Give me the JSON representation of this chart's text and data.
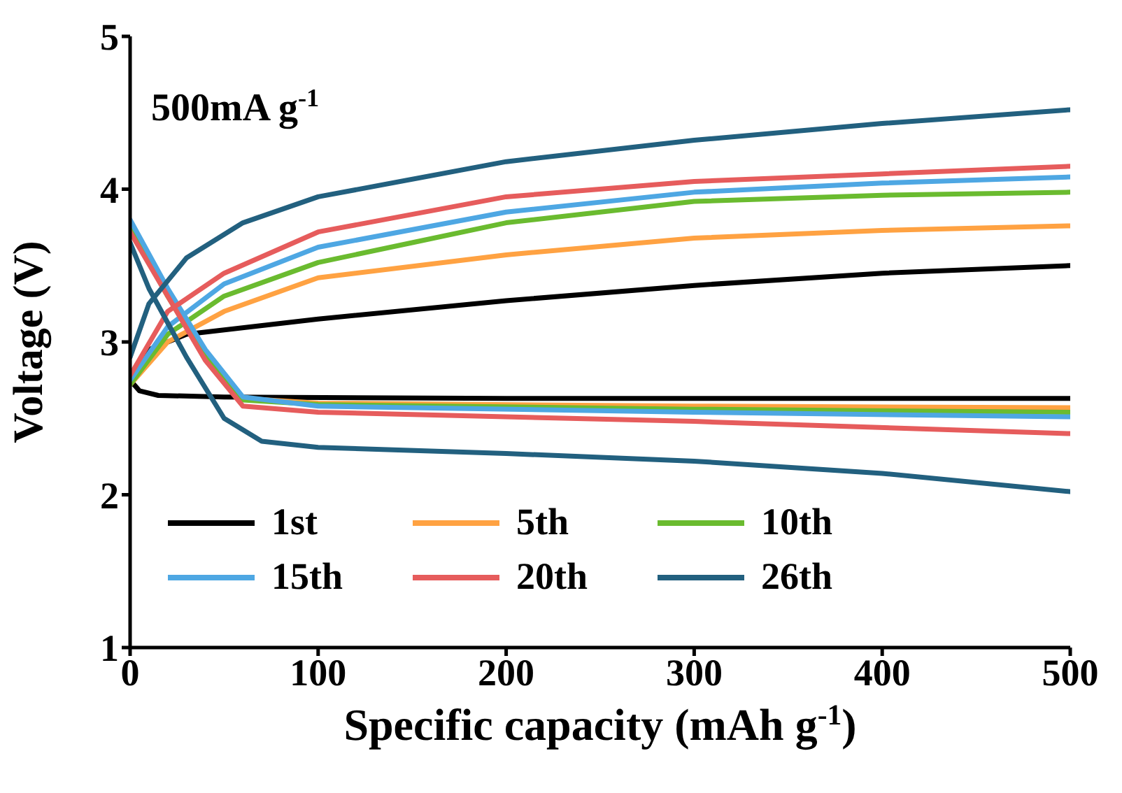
{
  "chart_data": {
    "type": "line",
    "xlabel": "Specific capacity (mAh g$^{-1}$)",
    "ylabel": "Voltage (V)",
    "annotations": [
      "500mA g$^{-1}$"
    ],
    "xlim": [
      0,
      500
    ],
    "xticks": [
      0,
      100,
      200,
      300,
      400,
      500
    ],
    "ylim": [
      1,
      5
    ],
    "yticks": [
      1,
      2,
      3,
      4,
      5
    ],
    "legend": "bottom",
    "series": [
      {
        "name": "1st",
        "color": "#000000",
        "x": [
          0,
          10,
          30,
          100,
          200,
          300,
          400,
          500
        ],
        "values": [
          2.75,
          2.95,
          3.05,
          3.15,
          3.27,
          3.37,
          3.45,
          3.5
        ]
      },
      {
        "color": "#000000",
        "x": [
          0,
          5,
          15,
          50,
          200,
          500
        ],
        "values": [
          2.75,
          2.68,
          2.65,
          2.64,
          2.63,
          2.63
        ]
      },
      {
        "name": "5th",
        "color": "#ffa242",
        "x": [
          0,
          20,
          50,
          100,
          200,
          300,
          400,
          500
        ],
        "values": [
          2.72,
          3.0,
          3.2,
          3.42,
          3.57,
          3.68,
          3.73,
          3.76
        ]
      },
      {
        "color": "#ffa242",
        "x": [
          0,
          20,
          40,
          60,
          100,
          300,
          500
        ],
        "values": [
          3.75,
          3.3,
          2.9,
          2.63,
          2.6,
          2.58,
          2.57
        ]
      },
      {
        "name": "10th",
        "color": "#6abb2f",
        "x": [
          0,
          20,
          50,
          100,
          150,
          200,
          300,
          400,
          500
        ],
        "values": [
          2.72,
          3.05,
          3.3,
          3.52,
          3.65,
          3.78,
          3.92,
          3.96,
          3.98
        ]
      },
      {
        "color": "#6abb2f",
        "x": [
          0,
          20,
          40,
          60,
          100,
          300,
          500
        ],
        "values": [
          3.75,
          3.3,
          2.9,
          2.62,
          2.59,
          2.56,
          2.54
        ]
      },
      {
        "name": "15th",
        "color": "#4ea7e3",
        "x": [
          0,
          20,
          50,
          100,
          200,
          300,
          400,
          500
        ],
        "values": [
          2.75,
          3.1,
          3.38,
          3.62,
          3.85,
          3.98,
          4.04,
          4.08
        ]
      },
      {
        "color": "#4ea7e3",
        "x": [
          0,
          20,
          40,
          60,
          100,
          300,
          500
        ],
        "values": [
          3.8,
          3.35,
          2.95,
          2.64,
          2.58,
          2.54,
          2.51
        ]
      },
      {
        "name": "20th",
        "color": "#e65c5c",
        "x": [
          0,
          20,
          50,
          100,
          200,
          300,
          400,
          500
        ],
        "values": [
          2.78,
          3.2,
          3.45,
          3.72,
          3.95,
          4.05,
          4.1,
          4.15
        ]
      },
      {
        "color": "#e65c5c",
        "x": [
          0,
          20,
          40,
          60,
          100,
          300,
          500
        ],
        "values": [
          3.72,
          3.3,
          2.88,
          2.58,
          2.54,
          2.48,
          2.4
        ]
      },
      {
        "name": "26th",
        "color": "#22607f",
        "x": [
          0,
          10,
          30,
          60,
          100,
          200,
          300,
          400,
          500
        ],
        "values": [
          2.9,
          3.25,
          3.55,
          3.78,
          3.95,
          4.18,
          4.32,
          4.43,
          4.52
        ]
      },
      {
        "color": "#22607f",
        "x": [
          0,
          10,
          30,
          50,
          70,
          100,
          200,
          300,
          400,
          500
        ],
        "values": [
          3.65,
          3.35,
          2.9,
          2.5,
          2.35,
          2.31,
          2.27,
          2.22,
          2.14,
          2.02
        ]
      }
    ]
  }
}
